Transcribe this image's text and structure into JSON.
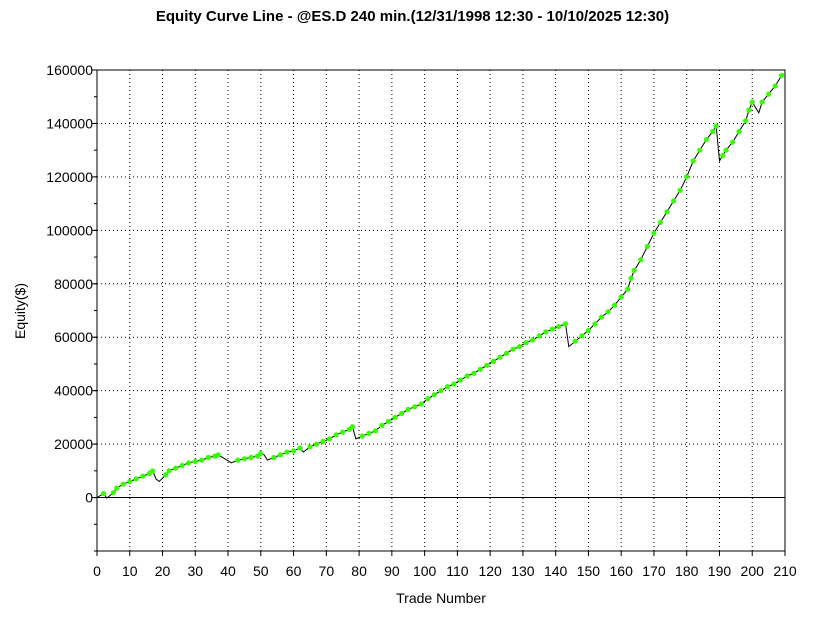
{
  "chart_data": {
    "type": "line",
    "title": "Equity Curve Line - @ES.D 240 min.(12/31/1998 12:30 - 10/10/2025 12:30)",
    "xlabel": "Trade Number",
    "ylabel": "Equity($)",
    "xlim": [
      0,
      210
    ],
    "ylim": [
      -20000,
      160000
    ],
    "x_ticks": [
      0,
      10,
      20,
      30,
      40,
      50,
      60,
      70,
      80,
      90,
      100,
      110,
      120,
      130,
      140,
      150,
      160,
      170,
      180,
      190,
      200,
      210
    ],
    "y_ticks": [
      0,
      20000,
      40000,
      60000,
      80000,
      100000,
      120000,
      140000,
      160000
    ],
    "grid": true,
    "line_color": "#000000",
    "marker_color": "#33ff00",
    "series": [
      {
        "x": [
          0,
          2,
          3,
          5,
          6,
          8,
          10,
          12,
          14,
          16,
          17,
          18,
          19,
          21,
          22,
          24,
          26,
          28,
          30,
          32,
          34,
          36,
          37,
          39,
          41,
          43,
          45,
          47,
          49,
          50,
          51,
          52,
          54,
          56,
          58,
          60,
          62,
          63,
          65,
          67,
          69,
          71,
          73,
          75,
          77,
          78,
          79,
          81,
          83,
          85,
          87,
          89,
          91,
          93,
          95,
          97,
          99,
          101,
          103,
          105,
          107,
          109,
          111,
          113,
          115,
          117,
          119,
          121,
          123,
          125,
          127,
          129,
          131,
          133,
          135,
          137,
          139,
          141,
          143,
          144,
          146,
          148,
          150,
          152,
          154,
          156,
          158,
          160,
          162,
          163,
          164,
          166,
          168,
          170,
          172,
          174,
          176,
          178,
          180,
          182,
          184,
          186,
          188,
          189,
          190,
          191,
          192,
          194,
          196,
          198,
          199,
          200,
          202,
          203,
          205,
          207,
          209
        ],
        "y": [
          0,
          1500,
          -200,
          1800,
          3500,
          5000,
          6000,
          7000,
          8000,
          9000,
          10000,
          7000,
          6000,
          8500,
          10000,
          11000,
          12000,
          13000,
          13500,
          14000,
          15000,
          15500,
          16000,
          14500,
          13000,
          14000,
          14500,
          15000,
          15500,
          16500,
          16000,
          14000,
          15000,
          16000,
          17000,
          17500,
          18500,
          17000,
          19000,
          20000,
          21000,
          22000,
          23500,
          24500,
          25500,
          26500,
          22000,
          23000,
          24000,
          25000,
          27000,
          28500,
          30000,
          31500,
          33000,
          34000,
          35000,
          37000,
          38500,
          40000,
          41500,
          42500,
          44000,
          45500,
          46500,
          48000,
          49500,
          51000,
          52500,
          54000,
          55500,
          56500,
          58000,
          59000,
          60500,
          62000,
          63000,
          64000,
          65000,
          56500,
          58500,
          60500,
          62500,
          65000,
          67500,
          69500,
          72000,
          75000,
          78000,
          82000,
          85000,
          89000,
          94000,
          99000,
          103000,
          107000,
          111000,
          115000,
          120000,
          126000,
          130000,
          134000,
          137000,
          139000,
          126000,
          128000,
          130000,
          133000,
          137000,
          141000,
          145000,
          148000,
          144000,
          148000,
          151000,
          154000,
          158000
        ]
      }
    ]
  }
}
